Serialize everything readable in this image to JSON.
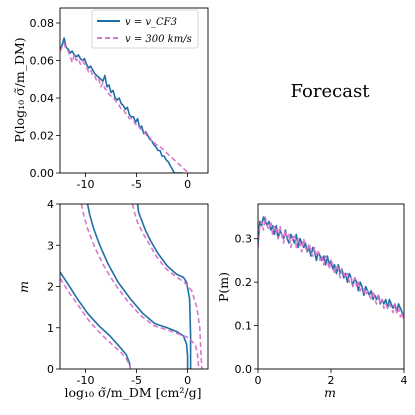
{
  "annotation": "Forecast",
  "colors": {
    "cf3": "#1f6fa5",
    "v300": "#d977cc"
  },
  "chart_data": [
    {
      "id": "marginal-sigma",
      "type": "line",
      "ylabel": "P(log₁₀ σ̃/m_DM)",
      "xlim": [
        -12.5,
        2
      ],
      "ylim": [
        0,
        0.088
      ],
      "xticks": [
        "-10",
        "-5",
        "0"
      ],
      "yticks": [
        "0.00",
        "0.02",
        "0.04",
        "0.06",
        "0.08"
      ],
      "legend": {
        "placement": "top-right",
        "entries": [
          "v = v_CF3",
          "v = 300 km/s"
        ]
      },
      "series": [
        {
          "name": "v = v_CF3",
          "x": [
            -12.5,
            -12.3,
            -12.1,
            -11.9,
            -11.7,
            -11.5,
            -11.3,
            -11.1,
            -10.9,
            -10.7,
            -10.5,
            -10.3,
            -10.1,
            -9.9,
            -9.7,
            -9.5,
            -9.3,
            -9.1,
            -8.9,
            -8.7,
            -8.5,
            -8.3,
            -8.1,
            -7.9,
            -7.7,
            -7.5,
            -7.3,
            -7.1,
            -6.9,
            -6.7,
            -6.5,
            -6.3,
            -6.1,
            -5.9,
            -5.7,
            -5.5,
            -5.3,
            -5.1,
            -4.9,
            -4.7,
            -4.5,
            -4.3,
            -4.1,
            -3.9,
            -3.7,
            -3.5,
            -3.3,
            -3.1,
            -2.9,
            -2.7,
            -2.5,
            -2.3,
            -2.1,
            -1.9,
            -1.7,
            -1.5,
            -1.3,
            -1.1,
            -0.9,
            -0.7,
            -0.5
          ],
          "y": [
            0.066,
            0.068,
            0.072,
            0.067,
            0.066,
            0.064,
            0.065,
            0.063,
            0.062,
            0.063,
            0.061,
            0.06,
            0.061,
            0.058,
            0.056,
            0.057,
            0.055,
            0.053,
            0.052,
            0.051,
            0.05,
            0.049,
            0.052,
            0.046,
            0.047,
            0.043,
            0.044,
            0.04,
            0.039,
            0.04,
            0.037,
            0.036,
            0.034,
            0.035,
            0.031,
            0.03,
            0.03,
            0.027,
            0.029,
            0.024,
            0.025,
            0.021,
            0.022,
            0.02,
            0.018,
            0.017,
            0.015,
            0.014,
            0.012,
            0.012,
            0.009,
            0.009,
            0.007,
            0.006,
            0.004,
            0.002,
            0.0,
            0.0,
            0.0,
            0.0,
            0.0
          ]
        },
        {
          "name": "v = 300 km/s",
          "x": [
            -12.5,
            -12.3,
            -12.1,
            -11.9,
            -11.7,
            -11.5,
            -11.3,
            -11.1,
            -10.9,
            -10.7,
            -10.5,
            -10.3,
            -10.1,
            -9.9,
            -9.7,
            -9.5,
            -9.3,
            -9.1,
            -8.9,
            -8.7,
            -8.5,
            -8.3,
            -8.1,
            -7.9,
            -7.7,
            -7.5,
            -7.3,
            -7.1,
            -6.9,
            -6.7,
            -6.5,
            -6.3,
            -6.1,
            -5.9,
            -5.7,
            -5.5,
            -5.3,
            -5.1,
            -4.9,
            -4.7,
            -4.5,
            -4.3,
            -4.1,
            -3.9,
            -3.7,
            -3.5,
            -3.3,
            -3.1,
            -2.9,
            -2.7,
            -2.5,
            -2.3,
            -2.1,
            -1.9,
            -1.7,
            -1.5,
            -1.3,
            -1.1,
            -0.9,
            -0.7,
            -0.5,
            -0.3,
            -0.1,
            0.1
          ],
          "y": [
            0.065,
            0.067,
            0.069,
            0.066,
            0.065,
            0.062,
            0.059,
            0.063,
            0.06,
            0.061,
            0.058,
            0.06,
            0.058,
            0.056,
            0.054,
            0.055,
            0.052,
            0.052,
            0.049,
            0.05,
            0.046,
            0.048,
            0.045,
            0.044,
            0.042,
            0.041,
            0.04,
            0.039,
            0.037,
            0.036,
            0.034,
            0.034,
            0.032,
            0.031,
            0.029,
            0.029,
            0.028,
            0.026,
            0.026,
            0.024,
            0.023,
            0.022,
            0.021,
            0.019,
            0.019,
            0.017,
            0.017,
            0.015,
            0.015,
            0.014,
            0.013,
            0.012,
            0.011,
            0.01,
            0.009,
            0.008,
            0.007,
            0.006,
            0.005,
            0.004,
            0.003,
            0.002,
            0.001,
            0.0
          ]
        }
      ]
    },
    {
      "id": "joint",
      "type": "line",
      "xlabel": "log₁₀ σ̃/m_DM [cm²/g]",
      "ylabel": "m",
      "xlim": [
        -12.5,
        2
      ],
      "ylim": [
        0,
        4
      ],
      "xticks": [
        "-10",
        "-5",
        "0"
      ],
      "yticks": [
        "0",
        "1",
        "2",
        "3",
        "4"
      ],
      "series": [
        {
          "name": "v = v_CF3 (outer contour)",
          "x": [
            -9.8,
            -9.6,
            -9.2,
            -8.6,
            -7.8,
            -6.8,
            -5.6,
            -4.4,
            -3.2,
            -2.0,
            -1.0,
            -0.4,
            -0.1,
            0.0,
            0.0
          ],
          "y": [
            4.0,
            3.75,
            3.4,
            3.0,
            2.55,
            2.1,
            1.7,
            1.35,
            1.1,
            1.0,
            0.9,
            0.8,
            0.6,
            0.3,
            0.0
          ]
        },
        {
          "name": "v = v_CF3 (inner contour)",
          "x": [
            -12.5,
            -11.7,
            -10.8,
            -9.8,
            -8.7,
            -7.6,
            -6.7,
            -6.0,
            -5.7,
            -5.6
          ],
          "y": [
            2.35,
            2.05,
            1.7,
            1.35,
            1.05,
            0.8,
            0.55,
            0.35,
            0.15,
            0.0
          ]
        },
        {
          "name": "v = v_CF3 (right contour)",
          "x": [
            -4.9,
            -4.8,
            -4.5,
            -4.1,
            -3.6,
            -2.9,
            -2.0,
            -1.1,
            -0.4,
            -0.1,
            0.2,
            0.3,
            0.3
          ],
          "y": [
            4.0,
            3.8,
            3.6,
            3.35,
            3.1,
            2.8,
            2.5,
            2.3,
            2.22,
            2.1,
            1.7,
            0.8,
            0.0
          ]
        },
        {
          "name": "v = 300 km/s (outer contour)",
          "x": [
            -10.4,
            -10.2,
            -9.8,
            -9.1,
            -8.2,
            -7.1,
            -5.9,
            -4.6,
            -3.3,
            -2.0,
            -0.9,
            0.2,
            0.8,
            1.0,
            1.1
          ],
          "y": [
            4.0,
            3.75,
            3.4,
            2.95,
            2.5,
            2.05,
            1.65,
            1.3,
            1.05,
            0.95,
            0.85,
            0.75,
            0.55,
            0.3,
            0.0
          ]
        },
        {
          "name": "v = 300 km/s (inner contour)",
          "x": [
            -12.5,
            -11.6,
            -10.6,
            -9.6,
            -8.5,
            -7.5,
            -6.6,
            -6.0,
            -5.7,
            -5.6
          ],
          "y": [
            2.2,
            1.85,
            1.5,
            1.15,
            0.85,
            0.62,
            0.42,
            0.25,
            0.1,
            0.0
          ]
        },
        {
          "name": "v = 300 km/s (right contour)",
          "x": [
            -5.4,
            -5.2,
            -4.9,
            -4.4,
            -3.8,
            -3.1,
            -2.2,
            -1.2,
            -0.3,
            0.4,
            0.9,
            1.2,
            1.3,
            1.4
          ],
          "y": [
            4.0,
            3.8,
            3.55,
            3.3,
            3.05,
            2.75,
            2.45,
            2.25,
            2.1,
            1.9,
            1.5,
            1.0,
            0.4,
            0.0
          ]
        }
      ]
    },
    {
      "id": "marginal-m",
      "type": "line",
      "xlabel": "m",
      "ylabel": "P(m)",
      "xlim": [
        0,
        4
      ],
      "ylim": [
        0,
        0.38
      ],
      "xticks": [
        "0",
        "2",
        "4"
      ],
      "yticks": [
        "0.0",
        "0.1",
        "0.2",
        "0.3"
      ],
      "series": [
        {
          "name": "v = v_CF3",
          "x": [
            0,
            0.05,
            0.1,
            0.15,
            0.2,
            0.25,
            0.3,
            0.35,
            0.4,
            0.45,
            0.5,
            0.55,
            0.6,
            0.65,
            0.7,
            0.75,
            0.8,
            0.85,
            0.9,
            0.95,
            1.0,
            1.05,
            1.1,
            1.15,
            1.2,
            1.25,
            1.3,
            1.35,
            1.4,
            1.45,
            1.5,
            1.55,
            1.6,
            1.65,
            1.7,
            1.75,
            1.8,
            1.85,
            1.9,
            1.95,
            2.0,
            2.05,
            2.1,
            2.15,
            2.2,
            2.25,
            2.3,
            2.35,
            2.4,
            2.45,
            2.5,
            2.55,
            2.6,
            2.65,
            2.7,
            2.75,
            2.8,
            2.85,
            2.9,
            2.95,
            3.0,
            3.05,
            3.1,
            3.15,
            3.2,
            3.25,
            3.3,
            3.35,
            3.4,
            3.45,
            3.5,
            3.55,
            3.6,
            3.65,
            3.7,
            3.75,
            3.8,
            3.85,
            3.9,
            3.95,
            4.0
          ],
          "y": [
            0.29,
            0.34,
            0.33,
            0.35,
            0.34,
            0.33,
            0.34,
            0.32,
            0.33,
            0.31,
            0.33,
            0.3,
            0.32,
            0.31,
            0.3,
            0.32,
            0.3,
            0.29,
            0.31,
            0.3,
            0.29,
            0.31,
            0.28,
            0.3,
            0.29,
            0.28,
            0.29,
            0.27,
            0.28,
            0.26,
            0.28,
            0.27,
            0.25,
            0.27,
            0.26,
            0.25,
            0.26,
            0.24,
            0.26,
            0.24,
            0.25,
            0.23,
            0.24,
            0.22,
            0.24,
            0.22,
            0.23,
            0.21,
            0.22,
            0.2,
            0.22,
            0.21,
            0.19,
            0.21,
            0.2,
            0.18,
            0.2,
            0.19,
            0.17,
            0.19,
            0.18,
            0.17,
            0.18,
            0.16,
            0.17,
            0.16,
            0.17,
            0.15,
            0.16,
            0.15,
            0.16,
            0.14,
            0.16,
            0.15,
            0.14,
            0.15,
            0.13,
            0.15,
            0.14,
            0.13,
            0.12
          ]
        },
        {
          "name": "v = 300 km/s",
          "x": [
            0,
            0.05,
            0.1,
            0.15,
            0.2,
            0.25,
            0.3,
            0.35,
            0.4,
            0.45,
            0.5,
            0.55,
            0.6,
            0.65,
            0.7,
            0.75,
            0.8,
            0.85,
            0.9,
            0.95,
            1.0,
            1.05,
            1.1,
            1.15,
            1.2,
            1.25,
            1.3,
            1.35,
            1.4,
            1.45,
            1.5,
            1.55,
            1.6,
            1.65,
            1.7,
            1.75,
            1.8,
            1.85,
            1.9,
            1.95,
            2.0,
            2.05,
            2.1,
            2.15,
            2.2,
            2.25,
            2.3,
            2.35,
            2.4,
            2.45,
            2.5,
            2.55,
            2.6,
            2.65,
            2.7,
            2.75,
            2.8,
            2.85,
            2.9,
            2.95,
            3.0,
            3.05,
            3.1,
            3.15,
            3.2,
            3.25,
            3.3,
            3.35,
            3.4,
            3.45,
            3.5,
            3.55,
            3.6,
            3.65,
            3.7,
            3.75,
            3.8,
            3.85,
            3.9,
            3.95,
            4.0
          ],
          "y": [
            0.28,
            0.33,
            0.34,
            0.32,
            0.35,
            0.33,
            0.32,
            0.34,
            0.31,
            0.33,
            0.32,
            0.3,
            0.33,
            0.31,
            0.29,
            0.32,
            0.3,
            0.31,
            0.28,
            0.3,
            0.31,
            0.28,
            0.3,
            0.29,
            0.27,
            0.3,
            0.28,
            0.27,
            0.29,
            0.27,
            0.26,
            0.28,
            0.26,
            0.27,
            0.25,
            0.26,
            0.24,
            0.26,
            0.25,
            0.23,
            0.25,
            0.24,
            0.22,
            0.24,
            0.23,
            0.21,
            0.23,
            0.22,
            0.21,
            0.22,
            0.2,
            0.21,
            0.19,
            0.21,
            0.19,
            0.2,
            0.18,
            0.19,
            0.18,
            0.17,
            0.18,
            0.17,
            0.16,
            0.18,
            0.16,
            0.15,
            0.17,
            0.15,
            0.16,
            0.14,
            0.15,
            0.14,
            0.15,
            0.14,
            0.13,
            0.15,
            0.13,
            0.14,
            0.12,
            0.13,
            0.11
          ]
        }
      ]
    }
  ]
}
